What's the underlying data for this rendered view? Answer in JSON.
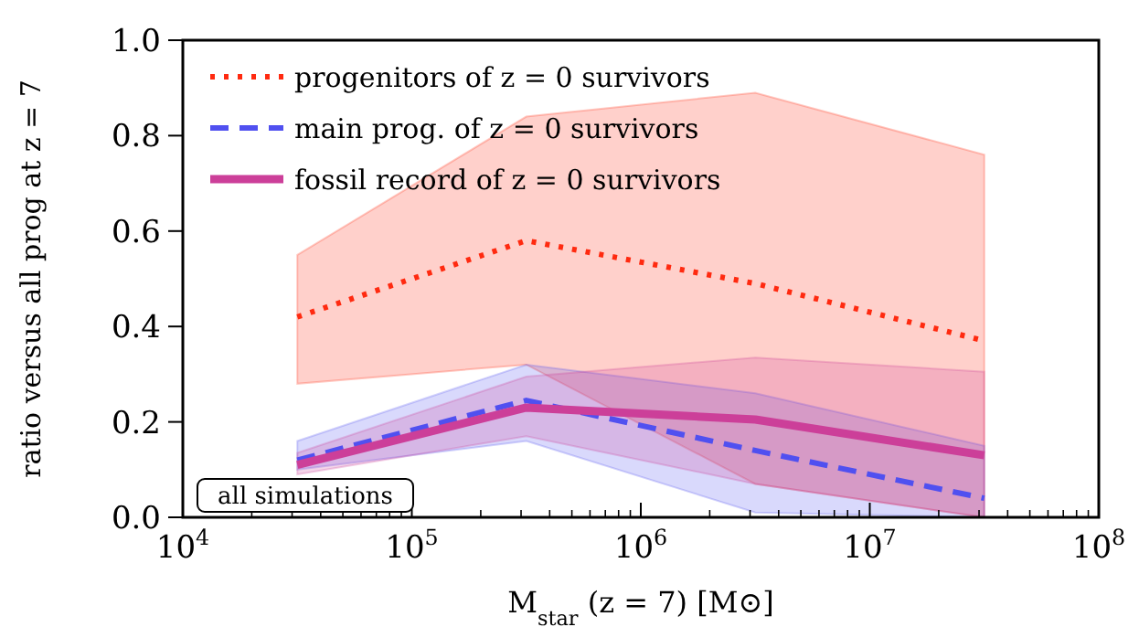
{
  "chart_data": {
    "type": "line",
    "xlabel": "M$_{star}$ (z = 7) [M⊙]",
    "ylabel": "ratio versus all prog at z = 7",
    "x": [
      31623,
      316228,
      3162278,
      31622777
    ],
    "log": "x",
    "xlim": [
      10000,
      100000000
    ],
    "xticks": [
      {
        "value": 10000,
        "label": "10$^{4}$"
      },
      {
        "value": 100000,
        "label": "10$^{5}$"
      },
      {
        "value": 1000000,
        "label": "10$^{6}$"
      },
      {
        "value": 10000000,
        "label": "10$^{7}$"
      },
      {
        "value": 100000000,
        "label": "10$^{8}$"
      }
    ],
    "ylim": [
      0,
      1
    ],
    "yticks": [
      {
        "value": 0,
        "label": "0.0"
      },
      0.2,
      0.4,
      0.6,
      0.8,
      {
        "value": 1,
        "label": "1.0"
      }
    ],
    "grid": false,
    "legend": "top left",
    "marker": "none",
    "annotations": [
      "all simulations"
    ],
    "series": [
      {
        "name": "progenitors of z = 0 survivors",
        "color": "#ff2a10",
        "line_style": "dotted",
        "values": [
          0.42,
          0.58,
          0.49,
          0.37
        ],
        "lower": [
          0.28,
          0.32,
          0.07,
          0.0
        ],
        "upper": [
          0.55,
          0.84,
          0.89,
          0.76
        ]
      },
      {
        "name": "main prog. of z = 0 survivors",
        "color": "#5050f0",
        "line_style": "dashed",
        "values": [
          0.12,
          0.245,
          0.14,
          0.04
        ],
        "lower": [
          0.1,
          0.16,
          0.01,
          0.0
        ],
        "upper": [
          0.16,
          0.32,
          0.26,
          0.15
        ]
      },
      {
        "name": "fossil record of z = 0 survivors",
        "color": "#cc3f99",
        "line_style": "solid",
        "values": [
          0.11,
          0.23,
          0.205,
          0.13
        ],
        "lower": [
          0.09,
          0.17,
          0.07,
          0.0
        ],
        "upper": [
          0.135,
          0.295,
          0.335,
          0.305
        ]
      }
    ]
  }
}
